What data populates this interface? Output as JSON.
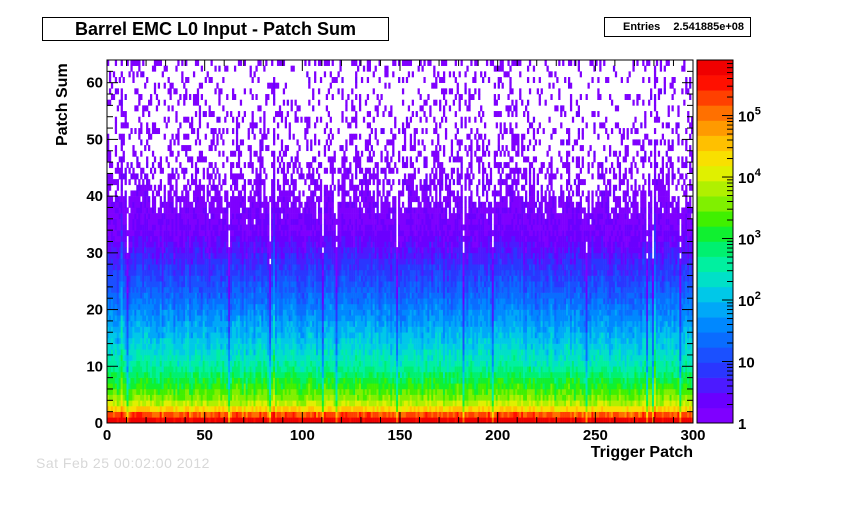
{
  "page": {
    "title": "Barrel EMC L0 Input - Patch Sum",
    "stats": {
      "label": "Entries",
      "value": "2.541885e+08"
    },
    "footer": "Sat Feb 25 00:02:00 2012"
  },
  "chart_data": {
    "type": "heatmap",
    "title": "Barrel EMC L0 Input - Patch Sum",
    "xlabel": "Trigger Patch",
    "ylabel": "Patch Sum",
    "xlim": [
      0,
      300
    ],
    "ylim": [
      0,
      64
    ],
    "x_ticks": [
      0,
      50,
      100,
      150,
      200,
      250,
      300
    ],
    "y_ticks": [
      0,
      10,
      20,
      30,
      40,
      50,
      60
    ],
    "z_scale": "log",
    "z_range": [
      1,
      800000
    ],
    "colorbar_ticks": [
      {
        "value": 1,
        "label": "1"
      },
      {
        "value": 10,
        "label": "10"
      },
      {
        "value": 100,
        "label": "10",
        "exp": "2"
      },
      {
        "value": 1000,
        "label": "10",
        "exp": "3"
      },
      {
        "value": 10000,
        "label": "10",
        "exp": "4"
      },
      {
        "value": 100000,
        "label": "10",
        "exp": "5"
      }
    ],
    "row_profile": [
      {
        "y": 0,
        "count": 800000
      },
      {
        "y": 1,
        "count": 600000
      },
      {
        "y": 2,
        "count": 50000
      },
      {
        "y": 3,
        "count": 12000
      },
      {
        "y": 4,
        "count": 5000
      },
      {
        "y": 6,
        "count": 2000
      },
      {
        "y": 8,
        "count": 900
      },
      {
        "y": 10,
        "count": 400
      },
      {
        "y": 13,
        "count": 180
      },
      {
        "y": 16,
        "count": 90
      },
      {
        "y": 20,
        "count": 35
      },
      {
        "y": 25,
        "count": 12
      },
      {
        "y": 30,
        "count": 4
      },
      {
        "y": 35,
        "count": 1.5
      },
      {
        "y": 40,
        "count": 0.6
      },
      {
        "y": 50,
        "count": 0.25
      },
      {
        "y": 63,
        "count": 0.15
      }
    ],
    "top_row_count": 1,
    "low_columns": [
      10,
      62,
      83,
      110,
      117,
      148,
      182,
      197,
      245,
      276,
      279,
      293
    ],
    "hot_columns": [
      7,
      85,
      245,
      280
    ],
    "grid": false
  }
}
